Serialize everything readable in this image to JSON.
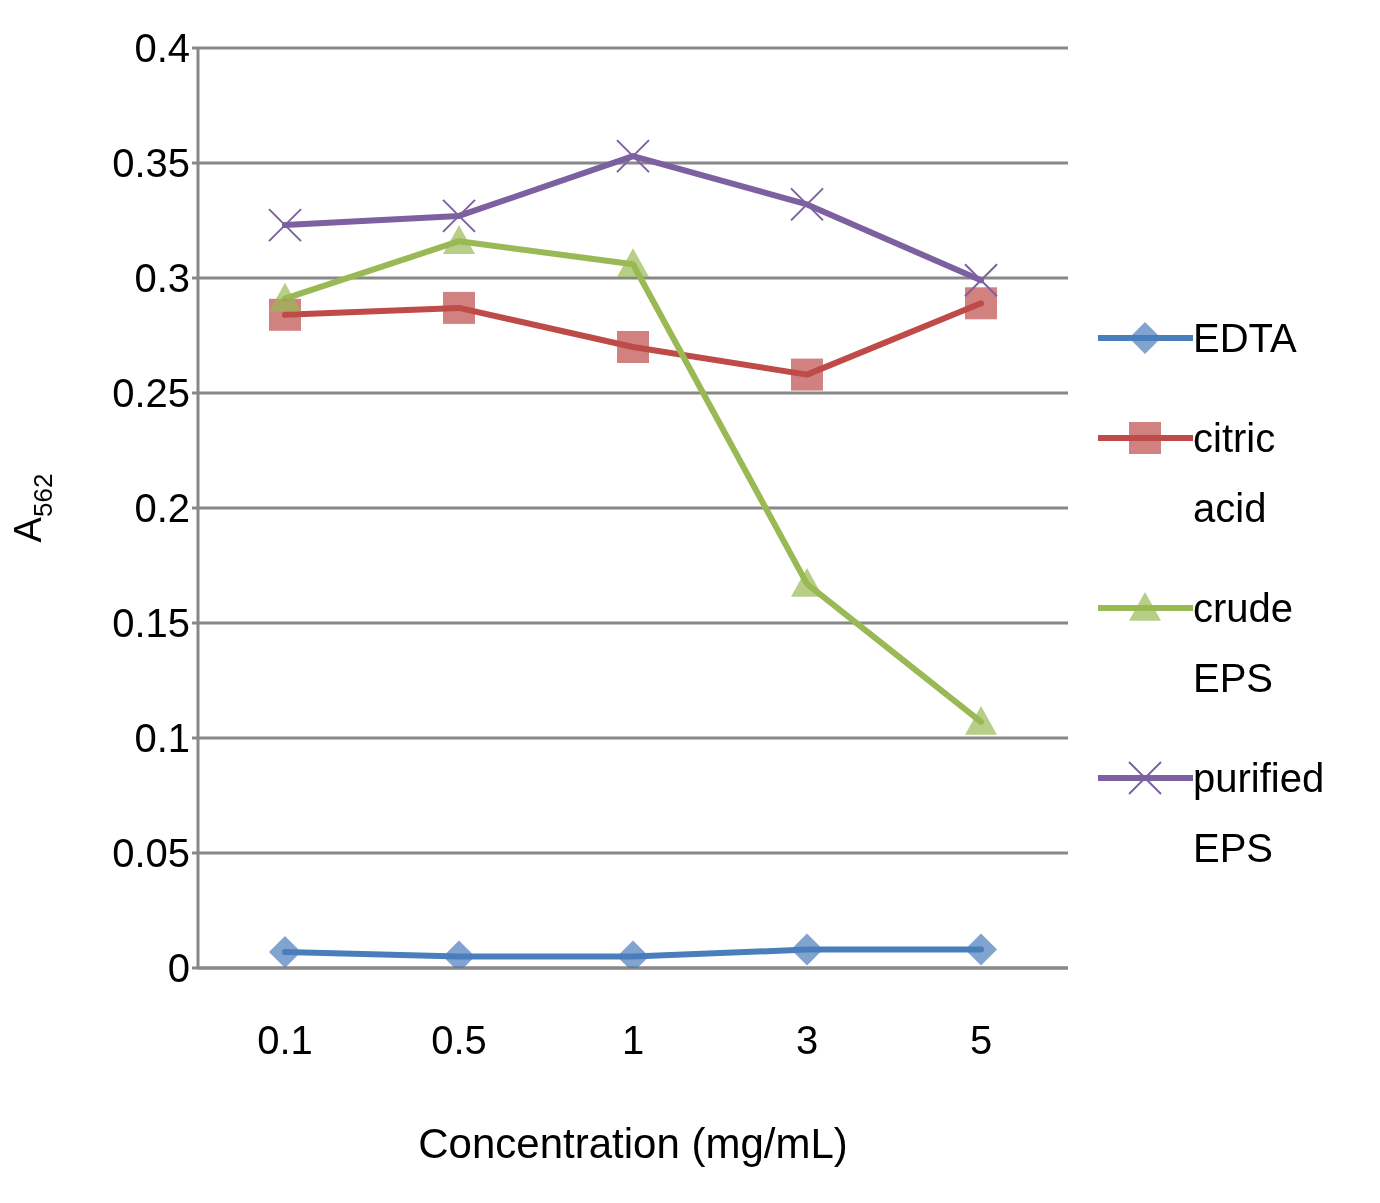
{
  "chart_data": {
    "type": "line",
    "xlabel": "Concentration (mg/mL)",
    "ylabel": "A$_{562}$",
    "categories": [
      "0.1",
      "0.5",
      "1",
      "3",
      "5"
    ],
    "series": [
      {
        "name": "EDTA",
        "color": "#4a7ebb",
        "marker": "diamond",
        "values": [
          0.007,
          0.005,
          0.005,
          0.008,
          0.008
        ]
      },
      {
        "name": "citric acid",
        "color": "#be4b48",
        "marker": "square",
        "values": [
          0.284,
          0.287,
          0.27,
          0.258,
          0.289
        ]
      },
      {
        "name": "crude EPS",
        "color": "#98b954",
        "marker": "triangle",
        "values": [
          0.291,
          0.316,
          0.306,
          0.167,
          0.107
        ]
      },
      {
        "name": "purified EPS",
        "color": "#7d60a0",
        "marker": "cross",
        "values": [
          0.323,
          0.327,
          0.353,
          0.332,
          0.299
        ]
      }
    ],
    "ylim": [
      0,
      0.4
    ],
    "yticks": [
      0,
      0.05,
      0.1,
      0.15,
      0.2,
      0.25,
      0.3,
      0.35,
      0.4
    ],
    "grid": "y",
    "legend": "right",
    "line_style": "solid"
  }
}
